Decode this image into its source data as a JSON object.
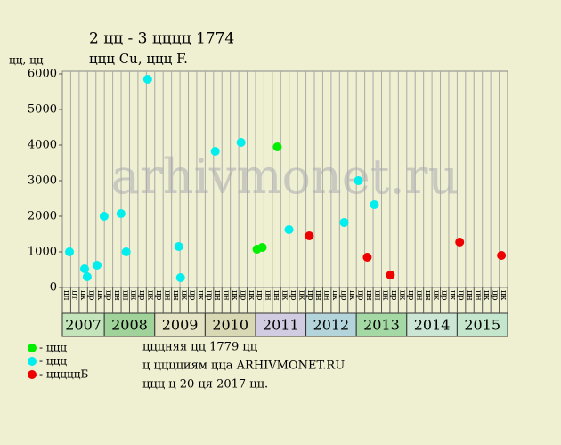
{
  "chart_data": {
    "type": "scatter",
    "title": "2 цц - 3 цццц 1774",
    "subtitle": "ццц Cu, ццц F.",
    "y_label": "цц, цц",
    "watermark": "arhivmonet.ru",
    "xlim": [
      0,
      53
    ],
    "ylim": [
      0,
      6000
    ],
    "yticks": [
      0,
      1000,
      2000,
      3000,
      4000,
      5000,
      6000
    ],
    "grid": true,
    "years": [
      {
        "label": "2007",
        "color": "#c4e4bc",
        "months": [
          "цл",
          "цт",
          "цк",
          "цр",
          "цк"
        ]
      },
      {
        "label": "2008",
        "color": "#9fd39a",
        "months": [
          "цр",
          "цн",
          "цн",
          "цк",
          "цр",
          "цк"
        ]
      },
      {
        "label": "2009",
        "color": "#e4e4c4",
        "months": [
          "цр",
          "цн",
          "цн",
          "цк",
          "цр",
          "цк"
        ]
      },
      {
        "label": "2010",
        "color": "#d8d8b4",
        "months": [
          "цр",
          "цн",
          "цн",
          "цк",
          "цр",
          "цк"
        ]
      },
      {
        "label": "2011",
        "color": "#d2cce2",
        "months": [
          "цр",
          "цн",
          "цн",
          "цк",
          "цр",
          "цк"
        ]
      },
      {
        "label": "2012",
        "color": "#b4d4dc",
        "months": [
          "цр",
          "цн",
          "цн",
          "цк",
          "цр",
          "цк"
        ]
      },
      {
        "label": "2013",
        "color": "#a4d8a4",
        "months": [
          "цр",
          "цн",
          "цн",
          "цк",
          "цр",
          "цк"
        ]
      },
      {
        "label": "2014",
        "color": "#cce6d6",
        "months": [
          "цр",
          "цн",
          "цн",
          "цк",
          "цр",
          "цк"
        ]
      },
      {
        "label": "2015",
        "color": "#c4e6cc",
        "months": [
          "цр",
          "цн",
          "цн",
          "цк",
          "цр",
          "цк"
        ]
      }
    ],
    "series": [
      {
        "name": "- ццц",
        "color": "#00ee00",
        "x": [
          23.17,
          23.8,
          25.6
        ],
        "values": [
          1075,
          1125,
          3950
        ]
      },
      {
        "name": "- ццц",
        "color": "#00eeee",
        "x": [
          0.85,
          2.65,
          2.96,
          4.13,
          4.97,
          6.98,
          7.6,
          10.16,
          13.86,
          14.07,
          18.2,
          21.27,
          26.98,
          33.55,
          35.24,
          37.14
        ],
        "values": [
          1000,
          525,
          300,
          625,
          2000,
          2075,
          1000,
          5850,
          1150,
          275,
          3825,
          4075,
          1625,
          1825,
          3000,
          2325
        ]
      },
      {
        "name": "- цццццБ",
        "color": "#ee0000",
        "x": [
          29.4,
          36.3,
          39.05,
          47.3,
          52.27
        ],
        "values": [
          1450,
          850,
          350,
          1275,
          900
        ]
      }
    ],
    "notes": [
      "цццняя цц 1779 цц",
      "ц цццциям ццa ARHIVMONET.RU",
      "ццц ц 20 ця 2017 цц."
    ]
  }
}
